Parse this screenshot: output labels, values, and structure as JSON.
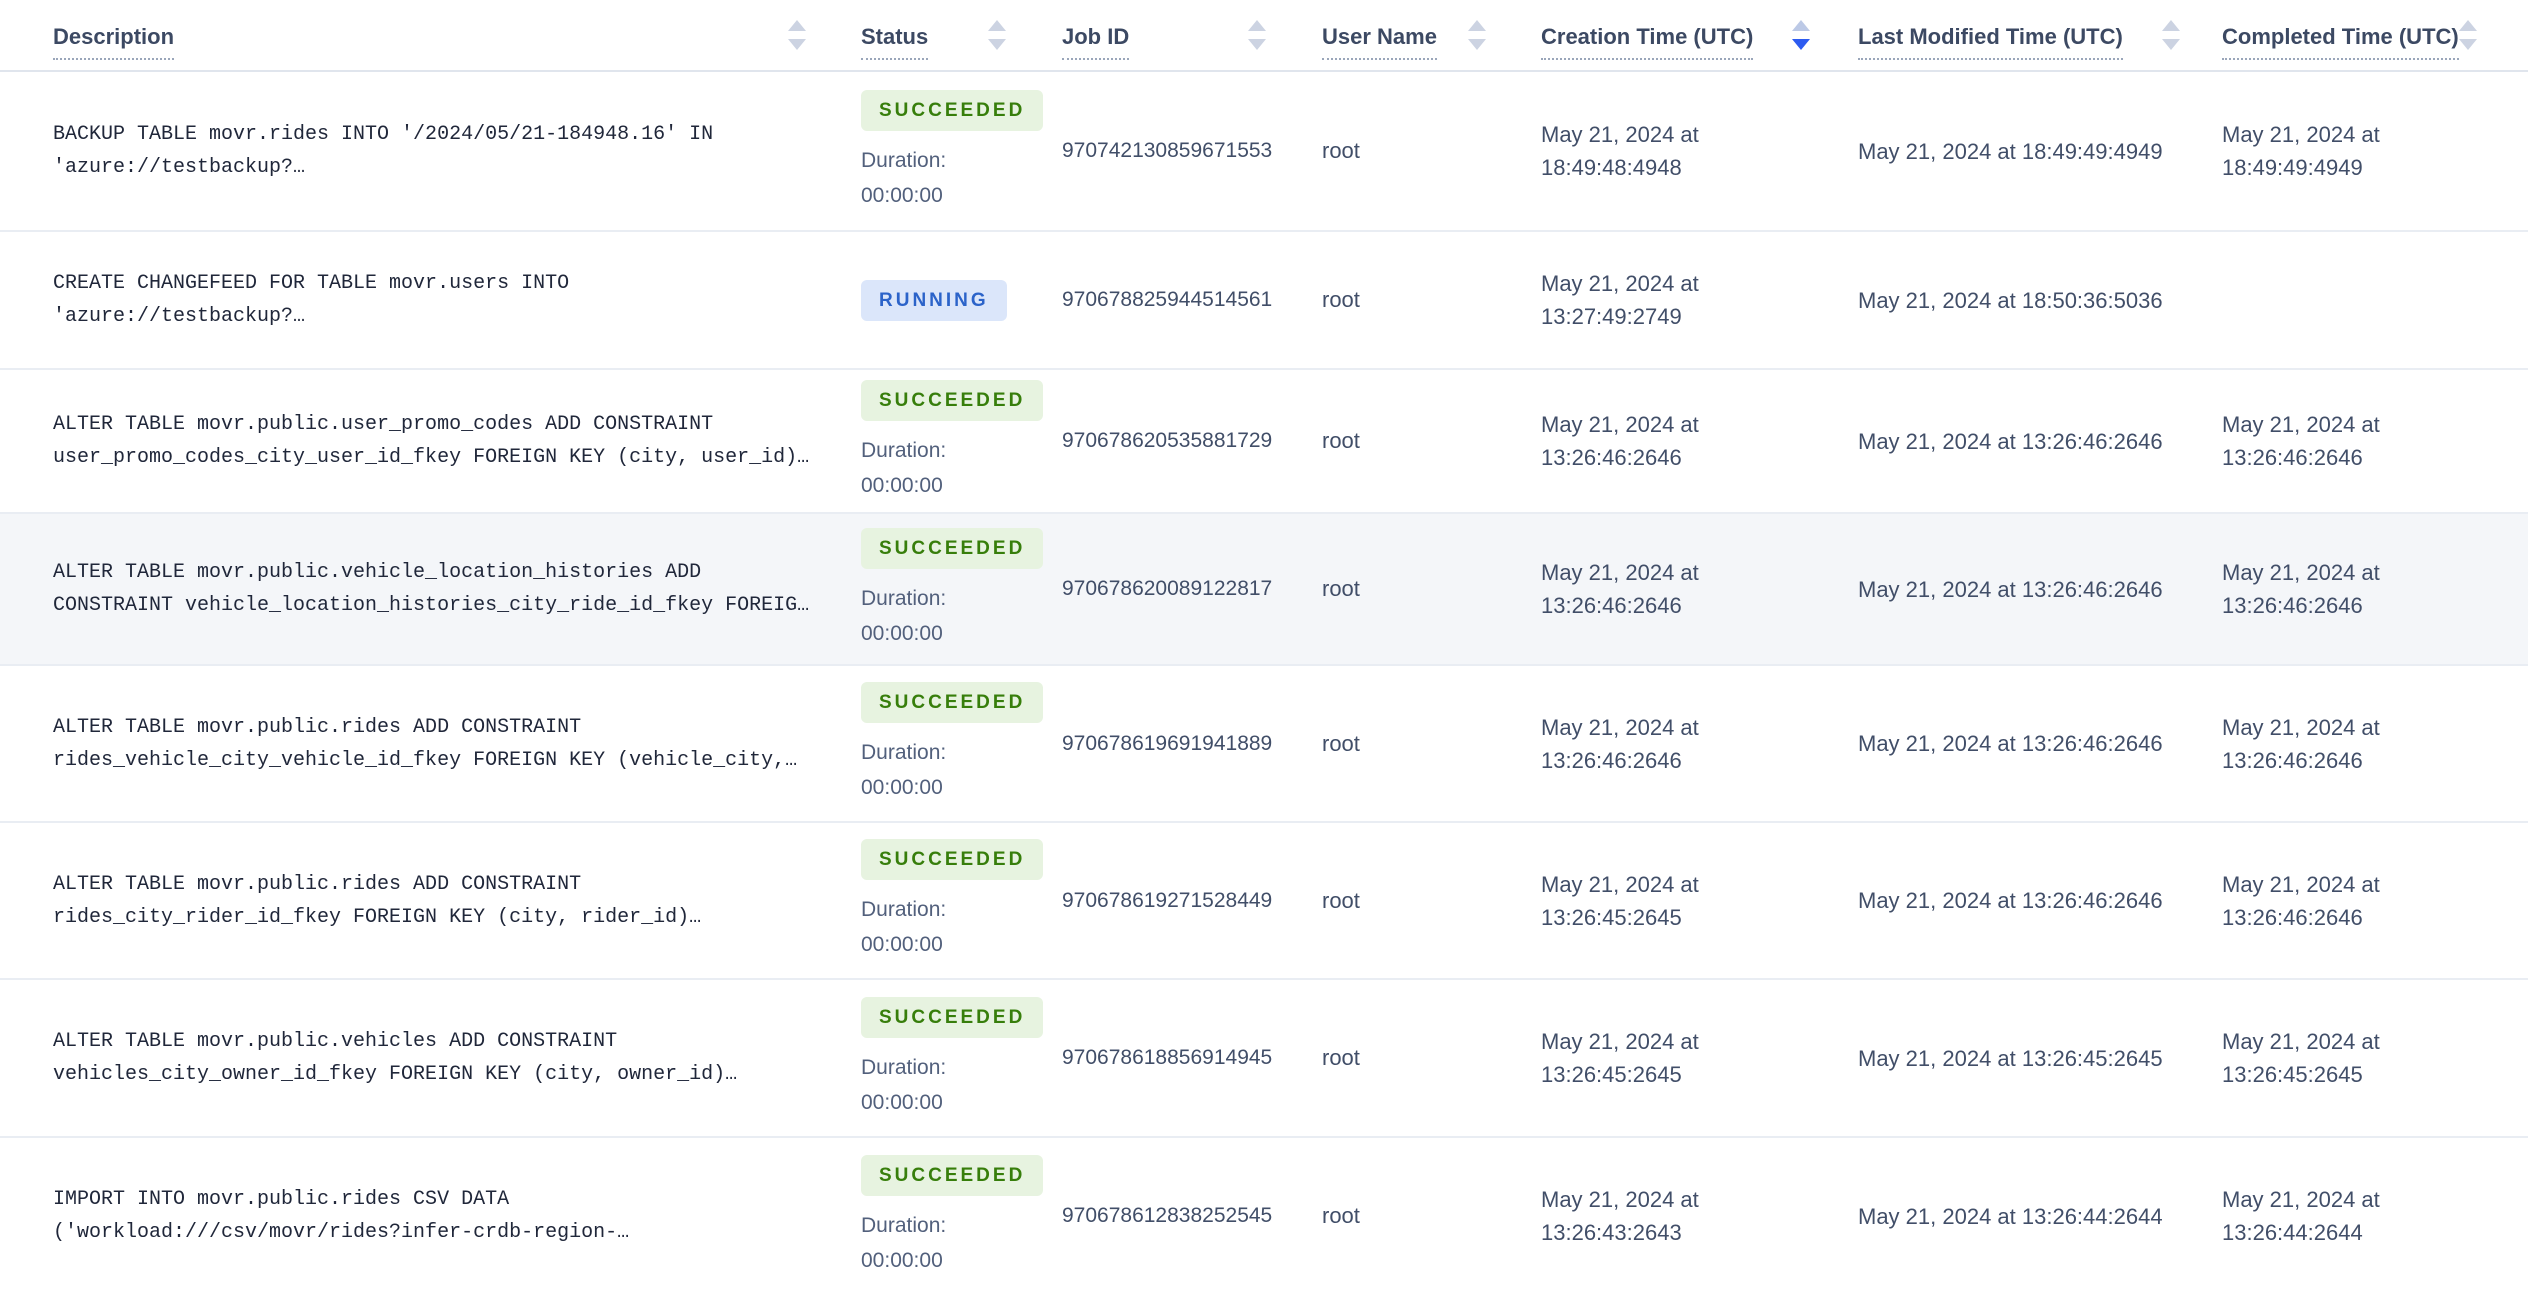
{
  "colors": {
    "succeeded_badge_bg": "#e7f3e0",
    "succeeded_badge_text": "#377e0b",
    "running_badge_bg": "#dbe6fa",
    "running_badge_text": "#2b63c9",
    "active_sort_arrow": "#2d5bf0",
    "inactive_sort_arrow": "#ccd3e2",
    "highlighted_row_bg": "#f4f6f9"
  },
  "table": {
    "columns": [
      {
        "id": "description",
        "label": "Description",
        "sort": null
      },
      {
        "id": "status",
        "label": "Status",
        "sort": null
      },
      {
        "id": "job-id",
        "label": "Job ID",
        "sort": null
      },
      {
        "id": "user-name",
        "label": "User Name",
        "sort": null
      },
      {
        "id": "creation-time",
        "label": "Creation Time (UTC)",
        "sort": "desc"
      },
      {
        "id": "last-modified-time",
        "label": "Last Modified Time (UTC)",
        "sort": null
      },
      {
        "id": "completed-time",
        "label": "Completed Time (UTC)",
        "sort": null
      }
    ],
    "rows": [
      {
        "description_lines": [
          "BACKUP TABLE movr.rides INTO '/2024/05/21-184948.16' IN",
          "'azure://testbackup?…"
        ],
        "status": "SUCCEEDED",
        "duration_label": "Duration:",
        "duration_value": "00:00:00",
        "job_id": "970742130859671553",
        "user_name": "root",
        "creation_time": "May 21, 2024 at 18:49:48:4948",
        "last_modified_time": "May 21, 2024 at 18:49:49:4949",
        "completed_time": "May 21, 2024 at 18:49:49:4949",
        "highlighted": false
      },
      {
        "description_lines": [
          "CREATE CHANGEFEED FOR TABLE movr.users INTO",
          "'azure://testbackup?…"
        ],
        "status": "RUNNING",
        "job_id": "970678825944514561",
        "user_name": "root",
        "creation_time": "May 21, 2024 at 13:27:49:2749",
        "last_modified_time": "May 21, 2024 at 18:50:36:5036",
        "completed_time": "",
        "highlighted": false
      },
      {
        "description_lines": [
          "ALTER TABLE movr.public.user_promo_codes ADD CONSTRAINT",
          "user_promo_codes_city_user_id_fkey FOREIGN KEY (city, user_id)…"
        ],
        "status": "SUCCEEDED",
        "duration_label": "Duration:",
        "duration_value": "00:00:00",
        "job_id": "970678620535881729",
        "user_name": "root",
        "creation_time": "May 21, 2024 at 13:26:46:2646",
        "last_modified_time": "May 21, 2024 at 13:26:46:2646",
        "completed_time": "May 21, 2024 at 13:26:46:2646",
        "highlighted": false
      },
      {
        "description_lines": [
          "ALTER TABLE movr.public.vehicle_location_histories ADD",
          "CONSTRAINT vehicle_location_histories_city_ride_id_fkey FOREIG…"
        ],
        "status": "SUCCEEDED",
        "duration_label": "Duration:",
        "duration_value": "00:00:00",
        "job_id": "970678620089122817",
        "user_name": "root",
        "creation_time": "May 21, 2024 at 13:26:46:2646",
        "last_modified_time": "May 21, 2024 at 13:26:46:2646",
        "completed_time": "May 21, 2024 at 13:26:46:2646",
        "highlighted": true
      },
      {
        "description_lines": [
          "ALTER TABLE movr.public.rides ADD CONSTRAINT",
          "rides_vehicle_city_vehicle_id_fkey FOREIGN KEY (vehicle_city,…"
        ],
        "status": "SUCCEEDED",
        "duration_label": "Duration:",
        "duration_value": "00:00:00",
        "job_id": "970678619691941889",
        "user_name": "root",
        "creation_time": "May 21, 2024 at 13:26:46:2646",
        "last_modified_time": "May 21, 2024 at 13:26:46:2646",
        "completed_time": "May 21, 2024 at 13:26:46:2646",
        "highlighted": false
      },
      {
        "description_lines": [
          "ALTER TABLE movr.public.rides ADD CONSTRAINT",
          "rides_city_rider_id_fkey FOREIGN KEY (city, rider_id)…"
        ],
        "status": "SUCCEEDED",
        "duration_label": "Duration:",
        "duration_value": "00:00:00",
        "job_id": "970678619271528449",
        "user_name": "root",
        "creation_time": "May 21, 2024 at 13:26:45:2645",
        "last_modified_time": "May 21, 2024 at 13:26:46:2646",
        "completed_time": "May 21, 2024 at 13:26:46:2646",
        "highlighted": false
      },
      {
        "description_lines": [
          "ALTER TABLE movr.public.vehicles ADD CONSTRAINT",
          "vehicles_city_owner_id_fkey FOREIGN KEY (city, owner_id)…"
        ],
        "status": "SUCCEEDED",
        "duration_label": "Duration:",
        "duration_value": "00:00:00",
        "job_id": "970678618856914945",
        "user_name": "root",
        "creation_time": "May 21, 2024 at 13:26:45:2645",
        "last_modified_time": "May 21, 2024 at 13:26:45:2645",
        "completed_time": "May 21, 2024 at 13:26:45:2645",
        "highlighted": false
      },
      {
        "description_lines": [
          "IMPORT INTO movr.public.rides CSV DATA",
          "('workload:///csv/movr/rides?infer-crdb-region-…"
        ],
        "status": "SUCCEEDED",
        "duration_label": "Duration:",
        "duration_value": "00:00:00",
        "job_id": "970678612838252545",
        "user_name": "root",
        "creation_time": "May 21, 2024 at 13:26:43:2643",
        "last_modified_time": "May 21, 2024 at 13:26:44:2644",
        "completed_time": "May 21, 2024 at 13:26:44:2644",
        "highlighted": false
      }
    ]
  }
}
